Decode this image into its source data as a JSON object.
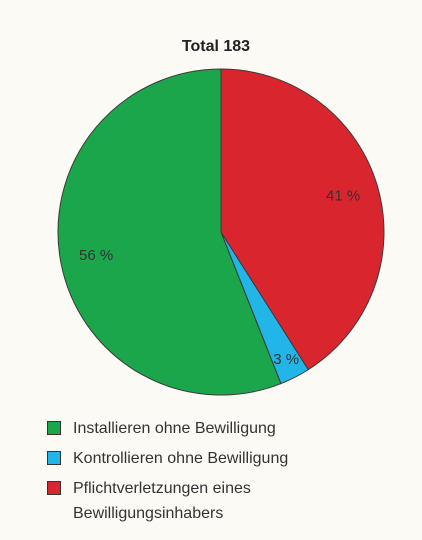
{
  "chart_data": {
    "type": "pie",
    "title": "Total 183",
    "categories": [
      "Installieren ohne Bewilligung",
      "Kontrollieren ohne Bewilligung",
      "Pflichtverletzungen eines Bewilligungsinhabers"
    ],
    "values": [
      56,
      3,
      41
    ],
    "value_labels": [
      "56 %",
      "3 %",
      "41 %"
    ],
    "colors": [
      "#1ca64c",
      "#22b6e8",
      "#d9262e"
    ]
  }
}
